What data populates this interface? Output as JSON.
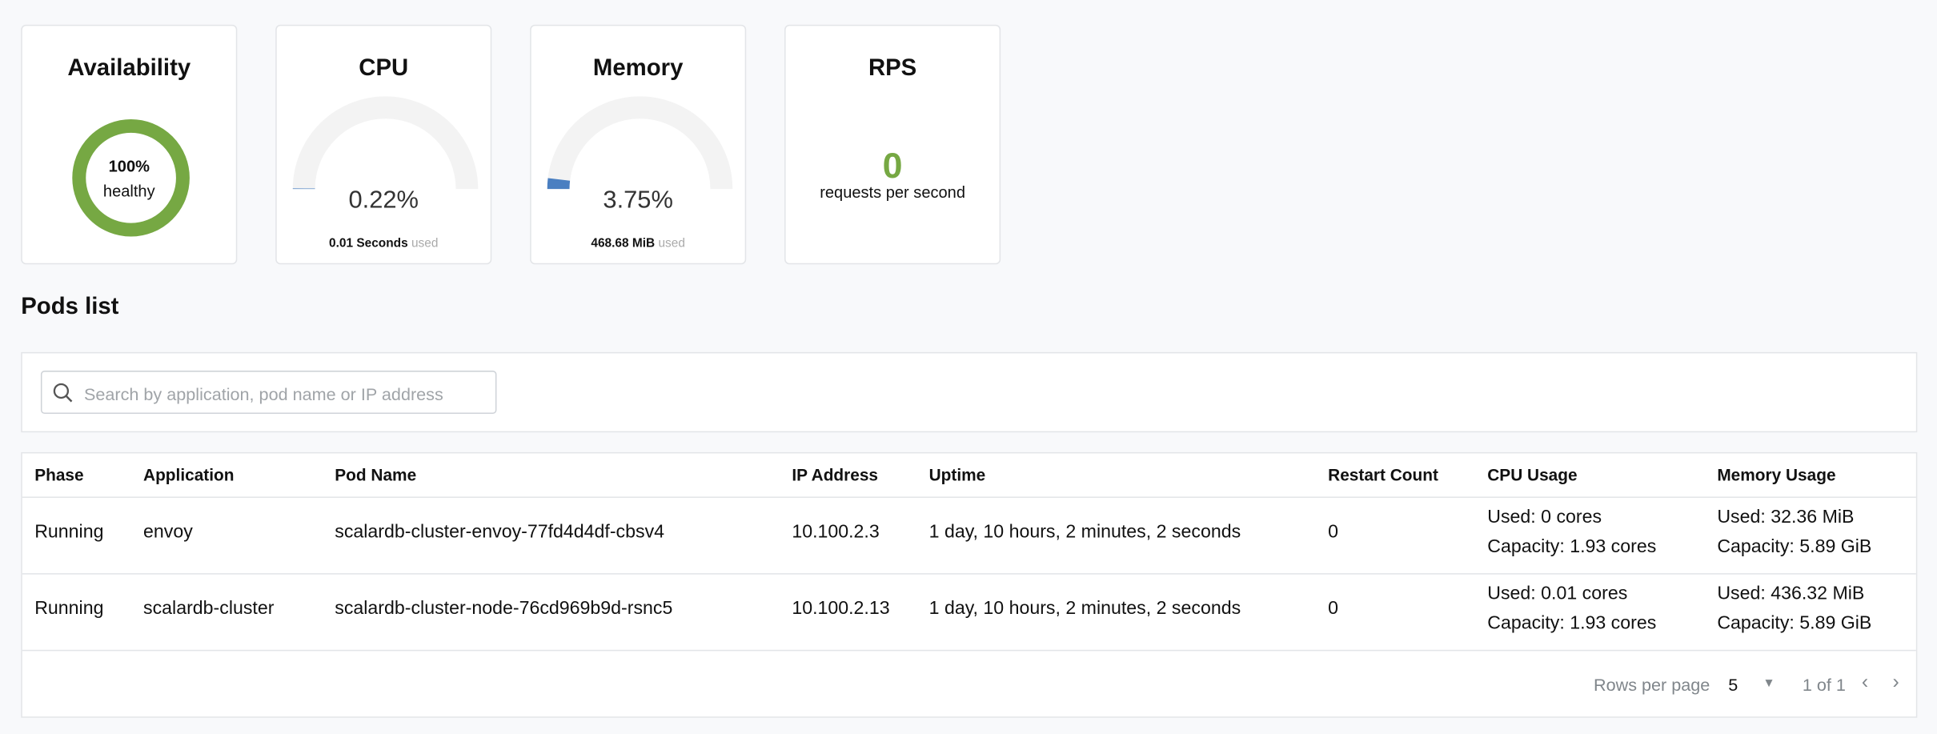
{
  "cards": {
    "availability": {
      "title": "Availability",
      "value": "100%",
      "label": "healthy",
      "percent": 100,
      "color": "#76a843"
    },
    "cpu": {
      "title": "CPU",
      "value": "0.22%",
      "percent": 0.22,
      "used_amount": "0.01 Seconds",
      "used_label": "used",
      "color": "#4a7fc1"
    },
    "memory": {
      "title": "Memory",
      "value": "3.75%",
      "percent": 3.75,
      "used_amount": "468.68 MiB",
      "used_label": "used",
      "color": "#4a7fc1"
    },
    "rps": {
      "title": "RPS",
      "value": "0",
      "label": "requests per second",
      "color": "#76a843"
    }
  },
  "pods": {
    "title": "Pods list",
    "search_placeholder": "Search by application, pod name or IP address",
    "columns": [
      "Phase",
      "Application",
      "Pod Name",
      "IP Address",
      "Uptime",
      "Restart Count",
      "CPU Usage",
      "Memory Usage"
    ],
    "rows": [
      {
        "phase": "Running",
        "application": "envoy",
        "pod_name": "scalardb-cluster-envoy-77fd4d4df-cbsv4",
        "ip": "10.100.2.3",
        "uptime": "1 day, 10 hours, 2 minutes, 2 seconds",
        "restarts": "0",
        "cpu_used": "Used: 0 cores",
        "cpu_capacity": "Capacity: 1.93 cores",
        "mem_used": "Used: 32.36 MiB",
        "mem_capacity": "Capacity: 5.89 GiB"
      },
      {
        "phase": "Running",
        "application": "scalardb-cluster",
        "pod_name": "scalardb-cluster-node-76cd969b9d-rsnc5",
        "ip": "10.100.2.13",
        "uptime": "1 day, 10 hours, 2 minutes, 2 seconds",
        "restarts": "0",
        "cpu_used": "Used: 0.01 cores",
        "cpu_capacity": "Capacity: 1.93 cores",
        "mem_used": "Used: 436.32 MiB",
        "mem_capacity": "Capacity: 5.89 GiB"
      }
    ],
    "pagination": {
      "rows_per_page_label": "Rows per page",
      "rows_per_page": "5",
      "page_info": "1 of 1"
    }
  }
}
